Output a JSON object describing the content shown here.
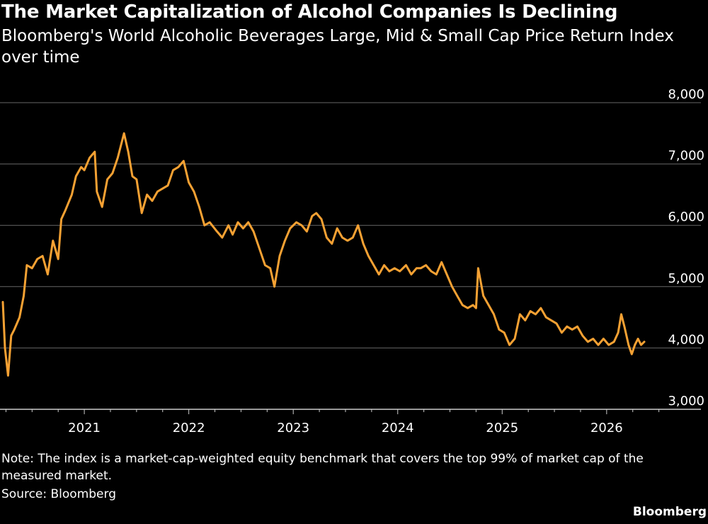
{
  "title": "The Market Capitalization of Alcohol Companies Is Declining",
  "subtitle": "Bloomberg's World Alcoholic Beverages Large, Mid & Small Cap Price Return Index over time",
  "note": "Note: The index is a market-cap-weighted equity benchmark that covers the top 99% of market cap of the measured market.",
  "source": "Source: Bloomberg",
  "brand": "Bloomberg",
  "colors": {
    "background": "#000000",
    "line": "#F5A133",
    "grid": "#666666",
    "text": "#FFFFFF"
  },
  "chart_data": {
    "type": "line",
    "grid": true,
    "ylim": [
      3000,
      8000
    ],
    "y_ticks": [
      3000,
      4000,
      5000,
      6000,
      7000,
      8000
    ],
    "y_tick_labels": [
      "3,000",
      "4,000",
      "5,000",
      "6,000",
      "7,000",
      "8,000"
    ],
    "xlim": [
      2020.22,
      2026.55
    ],
    "x_ticks": [
      2021,
      2022,
      2023,
      2024,
      2025,
      2026
    ],
    "x_tick_labels": [
      "2021",
      "2022",
      "2023",
      "2024",
      "2025",
      "2026"
    ],
    "series": [
      {
        "x": [
          2020.22,
          2020.24,
          2020.27,
          2020.3,
          2020.33,
          2020.38,
          2020.42,
          2020.45,
          2020.5,
          2020.55,
          2020.6,
          2020.65,
          2020.7,
          2020.75,
          2020.78,
          2020.82,
          2020.88,
          2020.92,
          2020.97,
          2021.0,
          2021.05,
          2021.1,
          2021.12,
          2021.17,
          2021.22,
          2021.27,
          2021.32,
          2021.38,
          2021.42,
          2021.46,
          2021.5,
          2021.55,
          2021.6,
          2021.65,
          2021.7,
          2021.75,
          2021.8,
          2021.85,
          2021.9,
          2021.95,
          2022.0,
          2022.05,
          2022.1,
          2022.15,
          2022.2,
          2022.27,
          2022.32,
          2022.38,
          2022.42,
          2022.47,
          2022.52,
          2022.57,
          2022.62,
          2022.68,
          2022.73,
          2022.78,
          2022.82,
          2022.87,
          2022.92,
          2022.97,
          2023.03,
          2023.08,
          2023.13,
          2023.18,
          2023.22,
          2023.27,
          2023.32,
          2023.37,
          2023.42,
          2023.47,
          2023.52,
          2023.57,
          2023.62,
          2023.67,
          2023.72,
          2023.77,
          2023.82,
          2023.87,
          2023.92,
          2023.97,
          2024.02,
          2024.08,
          2024.13,
          2024.18,
          2024.22,
          2024.27,
          2024.32,
          2024.37,
          2024.42,
          2024.47,
          2024.52,
          2024.57,
          2024.62,
          2024.67,
          2024.72,
          2024.75,
          2024.77,
          2024.82,
          2024.87,
          2024.92,
          2024.97,
          2025.02,
          2025.07,
          2025.12,
          2025.17,
          2025.22,
          2025.27,
          2025.32,
          2025.37,
          2025.42,
          2025.47,
          2025.52,
          2025.57,
          2025.62,
          2025.67,
          2025.72,
          2025.77,
          2025.82,
          2025.87,
          2025.92,
          2025.97,
          2026.02,
          2026.07,
          2026.11,
          2026.14,
          2026.17,
          2026.21,
          2026.24,
          2026.27,
          2026.3,
          2026.33,
          2026.36
        ],
        "values": [
          4750,
          4000,
          3550,
          4200,
          4300,
          4500,
          4850,
          5350,
          5300,
          5450,
          5500,
          5200,
          5750,
          5450,
          6100,
          6250,
          6500,
          6800,
          6950,
          6900,
          7100,
          7200,
          6550,
          6300,
          6750,
          6850,
          7100,
          7500,
          7200,
          6800,
          6750,
          6200,
          6500,
          6400,
          6550,
          6600,
          6650,
          6900,
          6950,
          7050,
          6700,
          6550,
          6300,
          6000,
          6050,
          5900,
          5800,
          6000,
          5850,
          6050,
          5950,
          6050,
          5900,
          5600,
          5350,
          5300,
          5000,
          5500,
          5750,
          5950,
          6050,
          6000,
          5900,
          6150,
          6200,
          6100,
          5800,
          5700,
          5950,
          5800,
          5750,
          5800,
          6000,
          5700,
          5500,
          5350,
          5200,
          5350,
          5250,
          5300,
          5250,
          5350,
          5200,
          5300,
          5300,
          5350,
          5250,
          5200,
          5400,
          5200,
          5000,
          4850,
          4700,
          4650,
          4700,
          4650,
          5300,
          4850,
          4700,
          4550,
          4300,
          4250,
          4050,
          4150,
          4550,
          4450,
          4600,
          4550,
          4650,
          4500,
          4450,
          4400,
          4250,
          4350,
          4300,
          4350,
          4200,
          4100,
          4150,
          4050,
          4150,
          4050,
          4100,
          4250,
          4550,
          4350,
          4050,
          3900,
          4050,
          4150,
          4050,
          4100
        ]
      }
    ]
  }
}
